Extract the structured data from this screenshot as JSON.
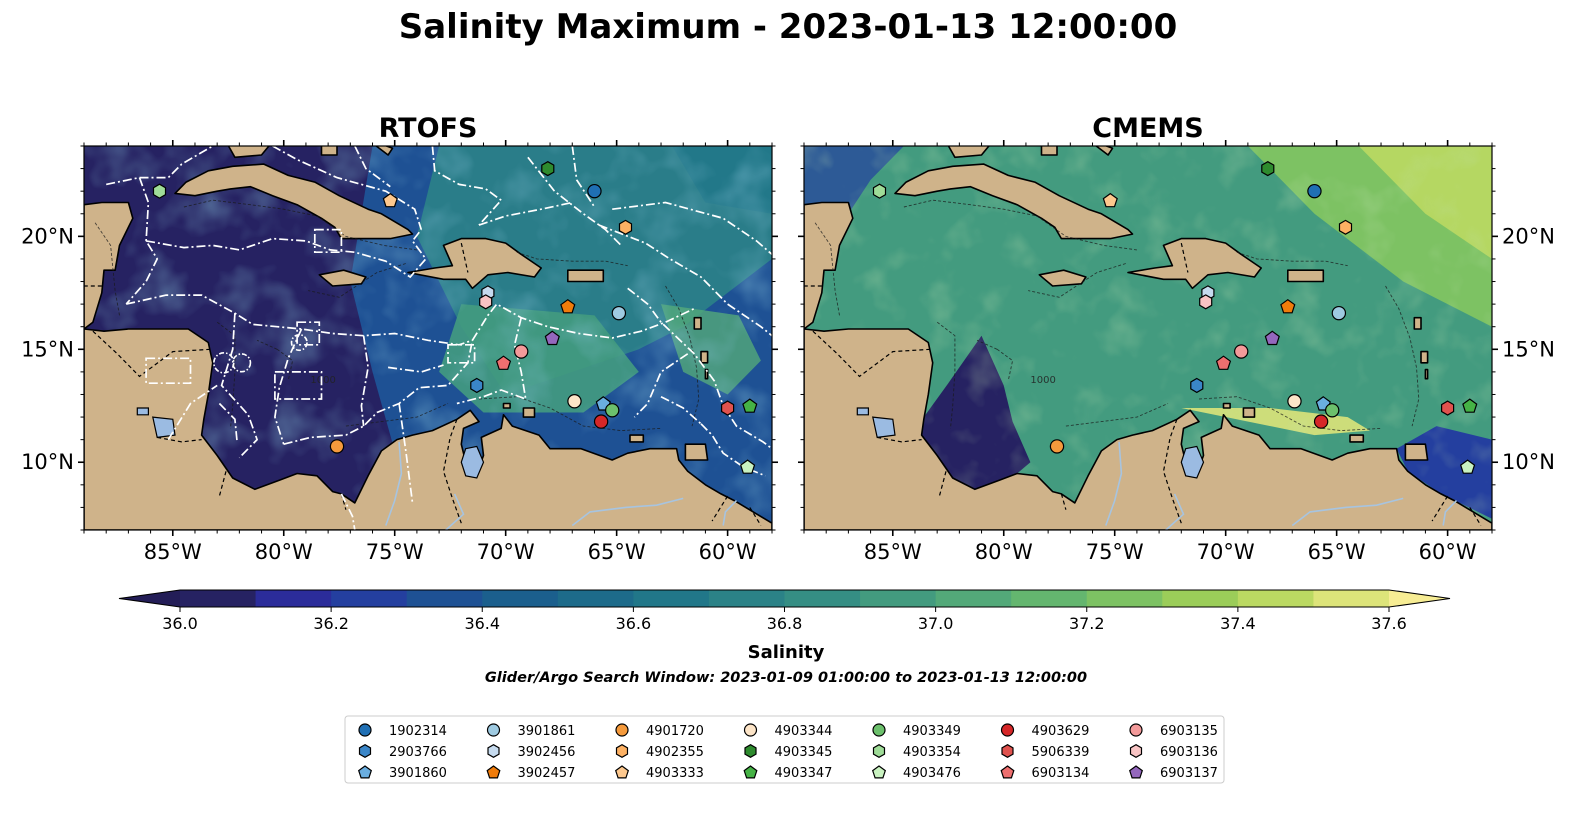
{
  "figure_title": "Salinity Maximum - 2023-01-13 12:00:00",
  "panels": [
    {
      "title": "RTOFS",
      "mode": "rtofs"
    },
    {
      "title": "CMEMS",
      "mode": "cmems"
    }
  ],
  "axes": {
    "lon_range": [
      -89,
      -58
    ],
    "lat_range": [
      7,
      24
    ],
    "lon_ticks": [
      {
        "value": -85,
        "label": "85°W"
      },
      {
        "value": -80,
        "label": "80°W"
      },
      {
        "value": -75,
        "label": "75°W"
      },
      {
        "value": -70,
        "label": "70°W"
      },
      {
        "value": -65,
        "label": "65°W"
      },
      {
        "value": -60,
        "label": "60°W"
      }
    ],
    "lat_ticks": [
      {
        "value": 10,
        "label": "10°N"
      },
      {
        "value": 15,
        "label": "15°N"
      },
      {
        "value": 20,
        "label": "20°N"
      }
    ],
    "contour_label": "1000"
  },
  "colorbar": {
    "label": "Salinity",
    "vmin": 36.0,
    "vmax": 37.6,
    "step": 0.1,
    "tick_labels": [
      "36.0",
      "36.2",
      "36.4",
      "36.6",
      "36.8",
      "37.0",
      "37.2",
      "37.4",
      "37.6"
    ],
    "colors": [
      "#262262",
      "#2b2c9a",
      "#243f9f",
      "#1e5194",
      "#1b5f8d",
      "#1d6b8a",
      "#217789",
      "#2b8287",
      "#358e84",
      "#439b7f",
      "#53a979",
      "#64b66f",
      "#7dc263",
      "#9bcd59",
      "#bbd962",
      "#dde47a",
      "#f5e98a"
    ],
    "under_color": "#231d57",
    "over_color": "#f7ed94"
  },
  "search_window": "Glider/Argo Search Window: 2023-01-09 01:00:00 to 2023-01-13 12:00:00",
  "legend": {
    "entries": [
      {
        "id": "1902314",
        "color": "#1f6fb4",
        "marker": "circle",
        "lon": -66.0,
        "lat": 22.0
      },
      {
        "id": "2903766",
        "color": "#3a86c8",
        "marker": "hexagon",
        "lon": -71.3,
        "lat": 13.4
      },
      {
        "id": "3901860",
        "color": "#6aaee0",
        "marker": "pentagon",
        "lon": -65.6,
        "lat": 12.6
      },
      {
        "id": "3901861",
        "color": "#9ecae1",
        "marker": "circle",
        "lon": -64.9,
        "lat": 16.6
      },
      {
        "id": "3902456",
        "color": "#c6dbef",
        "marker": "hexagon",
        "lon": -70.8,
        "lat": 17.5
      },
      {
        "id": "3902457",
        "color": "#f07c0b",
        "marker": "pentagon",
        "lon": -67.2,
        "lat": 16.9
      },
      {
        "id": "4901720",
        "color": "#f59a3c",
        "marker": "circle",
        "lon": -77.6,
        "lat": 10.7
      },
      {
        "id": "4902355",
        "color": "#fdb163",
        "marker": "hexagon",
        "lon": -64.6,
        "lat": 20.4
      },
      {
        "id": "4903333",
        "color": "#fdc88e",
        "marker": "pentagon",
        "lon": -75.2,
        "lat": 21.6
      },
      {
        "id": "4903344",
        "color": "#fde5c8",
        "marker": "circle",
        "lon": -66.9,
        "lat": 12.7
      },
      {
        "id": "4903345",
        "color": "#2e8b2e",
        "marker": "hexagon",
        "lon": -68.1,
        "lat": 23.0
      },
      {
        "id": "4903347",
        "color": "#45b245",
        "marker": "pentagon",
        "lon": -59.0,
        "lat": 12.5
      },
      {
        "id": "4903349",
        "color": "#6cc06c",
        "marker": "circle",
        "lon": -65.2,
        "lat": 12.3
      },
      {
        "id": "4903354",
        "color": "#9fdc98",
        "marker": "hexagon",
        "lon": -85.6,
        "lat": 22.0
      },
      {
        "id": "4903476",
        "color": "#c9f2c0",
        "marker": "pentagon",
        "lon": -59.1,
        "lat": 9.8
      },
      {
        "id": "4903629",
        "color": "#d62728",
        "marker": "circle",
        "lon": -65.7,
        "lat": 11.8
      },
      {
        "id": "5906339",
        "color": "#e0524e",
        "marker": "hexagon",
        "lon": -60.0,
        "lat": 12.4
      },
      {
        "id": "6903134",
        "color": "#ee6f6f",
        "marker": "pentagon",
        "lon": -70.1,
        "lat": 14.4
      },
      {
        "id": "6903135",
        "color": "#f39a9a",
        "marker": "circle",
        "lon": -69.3,
        "lat": 14.9
      },
      {
        "id": "6903136",
        "color": "#f8c4c4",
        "marker": "hexagon",
        "lon": -70.9,
        "lat": 17.1
      },
      {
        "id": "6903137",
        "color": "#9467bd",
        "marker": "pentagon",
        "lon": -67.9,
        "lat": 15.5
      }
    ]
  },
  "colors": {
    "land": "#cfb38a",
    "coast": "#000000",
    "rivers": "#a7c4e0",
    "lakes": "#9bbbe2",
    "eez_lines": "#ffffff"
  }
}
